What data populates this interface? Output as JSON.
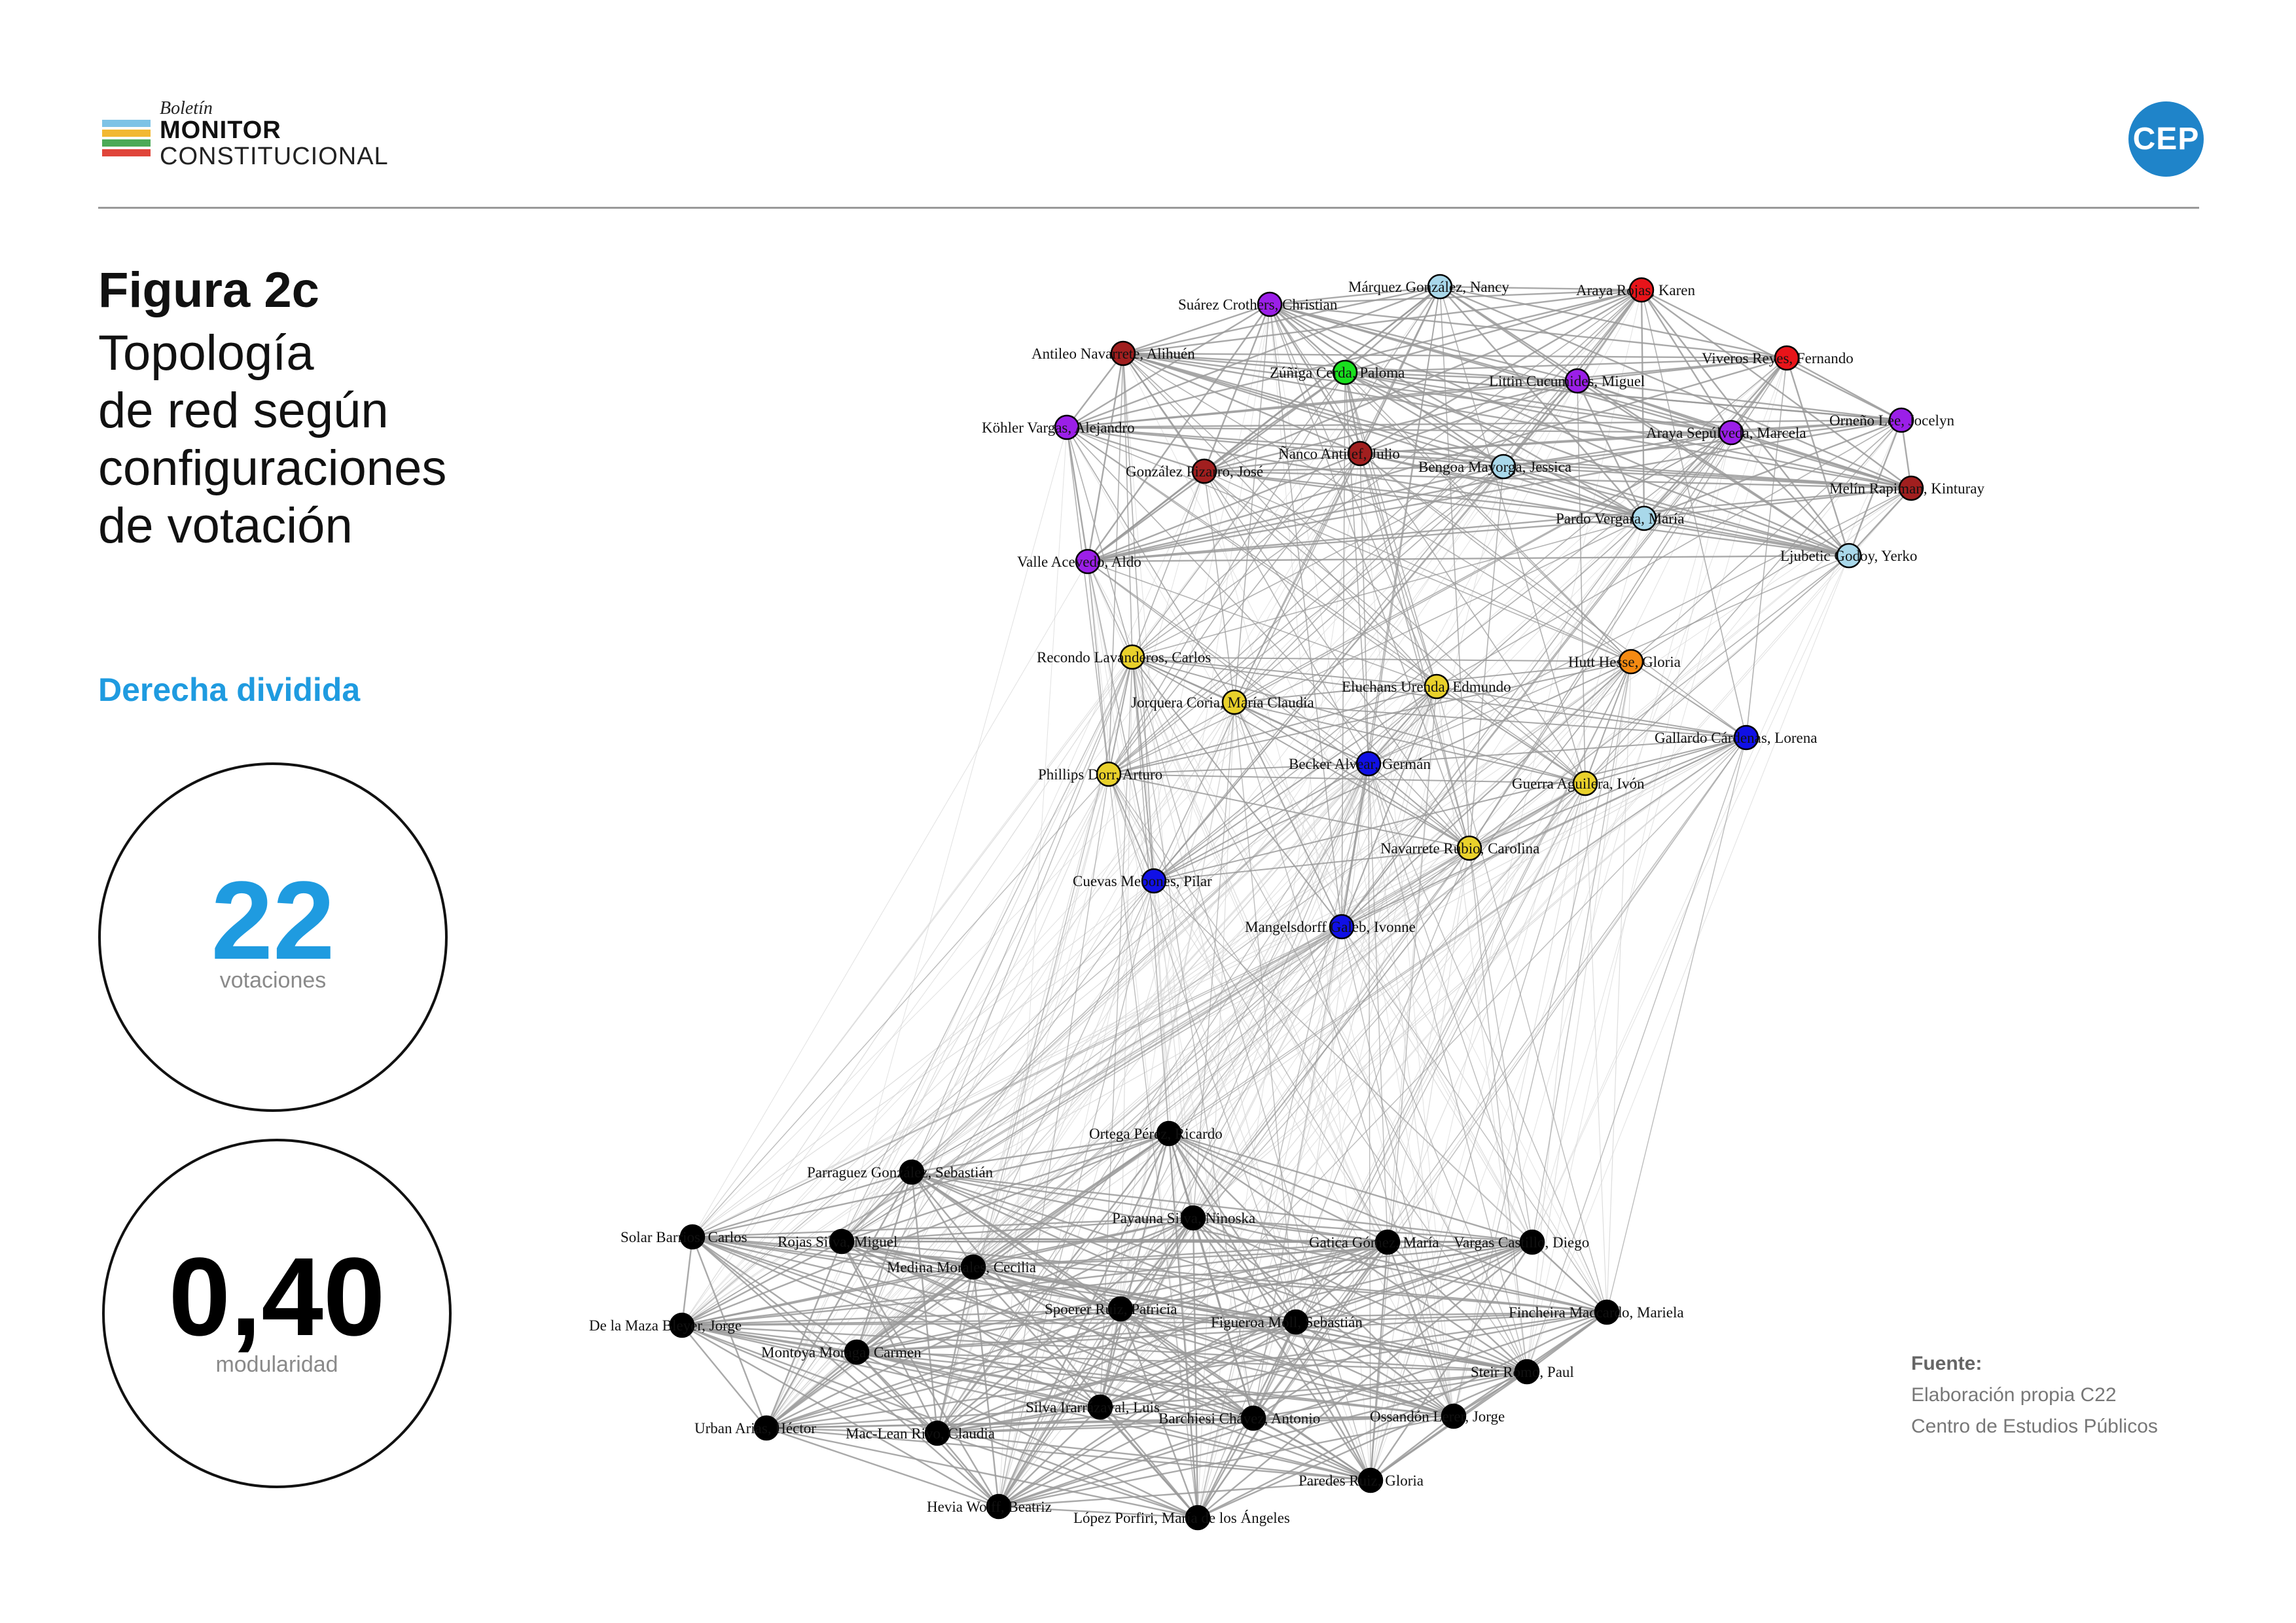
{
  "header": {
    "logo_small": "Boletín",
    "logo_main": "MONITOR",
    "logo_sub": "CONSTITUCIONAL",
    "logo_colors": [
      "#7ec3e6",
      "#f2b833",
      "#4caa57",
      "#e0453a"
    ],
    "org_badge": "CEP",
    "org_color": "#1f84c9"
  },
  "figure": {
    "title": "Figura 2c",
    "subtitle_lines": [
      "Topología",
      "de red según",
      "configuraciones",
      "de votación"
    ],
    "configuration": "Derecha dividida",
    "accent_color": "#1f9be0"
  },
  "stats": {
    "votes_value": "22",
    "votes_label": "votaciones",
    "modularity_value": "0,40",
    "modularity_label": "modularidad"
  },
  "source": {
    "title": "Fuente:",
    "line1": "Elaboración propia C22",
    "line2": "Centro de Estudios Públicos"
  },
  "network": {
    "edge_color_strong": "#9a9a9a",
    "edge_color_weak": "#d4d4d4",
    "cluster_colors": {
      "purple": "#9b1fe8",
      "lightblue": "#a9d8ea",
      "red": "#e8141a",
      "darkred": "#a11f1f",
      "green": "#19e01e",
      "orange": "#f58a12",
      "yellow": "#e9d12b",
      "blue": "#1010e6",
      "black": "#000000"
    },
    "nodes": [
      {
        "id": "suarez",
        "label": "Suárez Crothers, Christian",
        "color": "purple",
        "group": "top"
      },
      {
        "id": "marquez",
        "label": "Márquez González, Nancy",
        "color": "lightblue",
        "group": "top"
      },
      {
        "id": "arayar",
        "label": "Araya Rojas, Karen",
        "color": "red",
        "group": "top"
      },
      {
        "id": "antileo",
        "label": "Antileo Navarrete, Alihuén",
        "color": "darkred",
        "group": "top"
      },
      {
        "id": "zuniga",
        "label": "Zúñiga Cerda, Paloma",
        "color": "green",
        "group": "top"
      },
      {
        "id": "viveros",
        "label": "Viveros Reyes, Fernando",
        "color": "red",
        "group": "top"
      },
      {
        "id": "littin",
        "label": "Littin Cucumides, Miguel",
        "color": "purple",
        "group": "top"
      },
      {
        "id": "kohler",
        "label": "Köhler Vargas, Alejandro",
        "color": "purple",
        "group": "top"
      },
      {
        "id": "ormeno",
        "label": "Orneño Lee, Jocelyn",
        "color": "purple",
        "group": "top"
      },
      {
        "id": "arayas",
        "label": "Araya Sepúlveda, Marcela",
        "color": "purple",
        "group": "top"
      },
      {
        "id": "nanco",
        "label": "Ñanco Antilef, Julio",
        "color": "darkred",
        "group": "top"
      },
      {
        "id": "gonzalezp",
        "label": "González Pizarro, José",
        "color": "darkred",
        "group": "top"
      },
      {
        "id": "bengoa",
        "label": "Bengoa Mayorga, Jessica",
        "color": "lightblue",
        "group": "top"
      },
      {
        "id": "melin",
        "label": "Melín Rapiman, Kinturay",
        "color": "darkred",
        "group": "top"
      },
      {
        "id": "pardo",
        "label": "Pardo Vergara, María",
        "color": "lightblue",
        "group": "top"
      },
      {
        "id": "valle",
        "label": "Valle Acevedo, Aldo",
        "color": "purple",
        "group": "top"
      },
      {
        "id": "ljubetic",
        "label": "Ljubetic Godoy, Yerko",
        "color": "lightblue",
        "group": "top"
      },
      {
        "id": "recondo",
        "label": "Recondo Lavanderos, Carlos",
        "color": "yellow",
        "group": "mid"
      },
      {
        "id": "hutt",
        "label": "Hutt Hesse, Gloria",
        "color": "orange",
        "group": "mid"
      },
      {
        "id": "eluchans",
        "label": "Eluchans Urenda, Edmundo",
        "color": "yellow",
        "group": "mid"
      },
      {
        "id": "jorquera",
        "label": "Jorquera Coria, María Claudia",
        "color": "yellow",
        "group": "mid"
      },
      {
        "id": "gallardo",
        "label": "Gallardo Cárdenas, Lorena",
        "color": "blue",
        "group": "mid"
      },
      {
        "id": "becker",
        "label": "Becker Alvear, Germán",
        "color": "blue",
        "group": "mid"
      },
      {
        "id": "phillips",
        "label": "Phillips Dorr, Arturo",
        "color": "yellow",
        "group": "mid"
      },
      {
        "id": "guerra",
        "label": "Guerra Aguilera, Ivón",
        "color": "yellow",
        "group": "mid"
      },
      {
        "id": "navarrete",
        "label": "Navarrete Rubio, Carolina",
        "color": "yellow",
        "group": "mid"
      },
      {
        "id": "cuevas",
        "label": "Cuevas Mebones, Pilar",
        "color": "blue",
        "group": "mid"
      },
      {
        "id": "mangelsdorff",
        "label": "Mangelsdorff Galeb, Ivonne",
        "color": "blue",
        "group": "mid"
      },
      {
        "id": "ortega",
        "label": "Ortega Pérez, Ricardo",
        "color": "black",
        "group": "bottom"
      },
      {
        "id": "parraguez",
        "label": "Parraguez González, Sebastián",
        "color": "black",
        "group": "bottom"
      },
      {
        "id": "solar",
        "label": "Solar Barrios, Carlos",
        "color": "black",
        "group": "bottom"
      },
      {
        "id": "rojas",
        "label": "Rojas Silva, Miguel",
        "color": "black",
        "group": "bottom"
      },
      {
        "id": "payauna",
        "label": "Payauna Silva, Ninoska",
        "color": "black",
        "group": "bottom"
      },
      {
        "id": "gatica",
        "label": "Gatica Gómez, María",
        "color": "black",
        "group": "bottom"
      },
      {
        "id": "vargas",
        "label": "Vargas Castillo, Diego",
        "color": "black",
        "group": "bottom"
      },
      {
        "id": "medina",
        "label": "Medina Morales, Cecilia",
        "color": "black",
        "group": "bottom"
      },
      {
        "id": "spoerer",
        "label": "Spoerer Ruiz, Patricia",
        "color": "black",
        "group": "bottom"
      },
      {
        "id": "fincheira",
        "label": "Fincheira Maccardo, Mariela",
        "color": "black",
        "group": "bottom"
      },
      {
        "id": "figueroa",
        "label": "Figueroa Moll, Sebastián",
        "color": "black",
        "group": "bottom"
      },
      {
        "id": "delamaza",
        "label": "De la Maza Bleyer, Jorge",
        "color": "black",
        "group": "bottom"
      },
      {
        "id": "montoya",
        "label": "Montoya Moraga, Carmen",
        "color": "black",
        "group": "bottom"
      },
      {
        "id": "steir",
        "label": "Steir Romo, Paul",
        "color": "black",
        "group": "bottom"
      },
      {
        "id": "silva",
        "label": "Silva Irarrázaval, Luis",
        "color": "black",
        "group": "bottom"
      },
      {
        "id": "ossandon",
        "label": "Ossandón Lerer, Jorge",
        "color": "black",
        "group": "bottom"
      },
      {
        "id": "barchiesi",
        "label": "Barchiesi Chávez, Antonio",
        "color": "black",
        "group": "bottom"
      },
      {
        "id": "urban",
        "label": "Urban Arias, Héctor",
        "color": "black",
        "group": "bottom"
      },
      {
        "id": "mac",
        "label": "Mac-Lean Rivo, Claudia",
        "color": "black",
        "group": "bottom"
      },
      {
        "id": "paredes",
        "label": "Paredes Ruiz, Gloria",
        "color": "black",
        "group": "bottom"
      },
      {
        "id": "hevia",
        "label": "Hevia Wolff, Beatriz",
        "color": "black",
        "group": "bottom"
      },
      {
        "id": "lopez",
        "label": "López Porfiri, María de los Ángeles",
        "color": "black",
        "group": "bottom"
      }
    ]
  }
}
